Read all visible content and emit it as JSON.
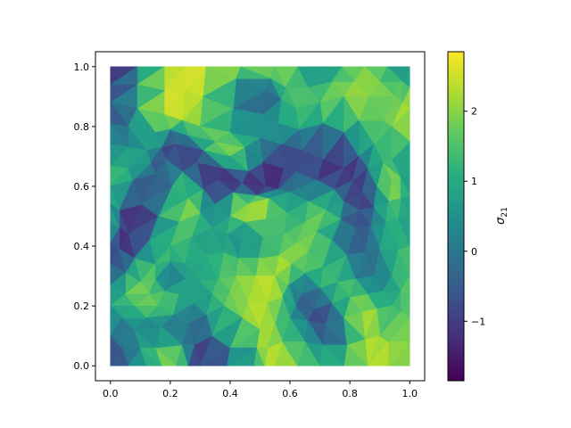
{
  "chart_data": {
    "type": "heatmap",
    "title": "",
    "xlabel": "",
    "ylabel": "",
    "xlim": [
      -0.05,
      1.05
    ],
    "ylim": [
      -0.05,
      1.05
    ],
    "x_ticks": [
      0.0,
      0.2,
      0.4,
      0.6,
      0.8,
      1.0
    ],
    "y_ticks": [
      0.0,
      0.2,
      0.4,
      0.6,
      0.8,
      1.0
    ],
    "x_tick_labels": [
      "0.0",
      "0.2",
      "0.4",
      "0.6",
      "0.8",
      "1.0"
    ],
    "y_tick_labels": [
      "0.0",
      "0.2",
      "0.4",
      "0.6",
      "0.8",
      "1.0"
    ],
    "grid": false,
    "colormap": "viridis",
    "colorbar": {
      "label": "σ21",
      "label_main": "σ",
      "label_sub": "21",
      "range": [
        -1.85,
        2.85
      ],
      "ticks": [
        -1,
        0,
        1,
        2
      ],
      "tick_labels": [
        "−1",
        "0",
        "1",
        "2"
      ]
    },
    "description_of_field": "Gouraud-shaded triangulation on unit square",
    "nodes": [
      [
        0.0,
        1.0,
        -1.8
      ],
      [
        0.18,
        1.0,
        2.3
      ],
      [
        0.32,
        1.0,
        2.6
      ],
      [
        0.55,
        1.0,
        2.2
      ],
      [
        0.7,
        1.0,
        0.3
      ],
      [
        0.85,
        1.0,
        2.0
      ],
      [
        1.0,
        1.0,
        0.2
      ],
      [
        0.0,
        0.88,
        -1.0
      ],
      [
        0.18,
        0.84,
        2.6
      ],
      [
        0.3,
        0.8,
        1.9
      ],
      [
        0.52,
        0.92,
        -0.8
      ],
      [
        0.62,
        0.86,
        1.6
      ],
      [
        0.78,
        0.9,
        2.2
      ],
      [
        0.95,
        0.9,
        1.8
      ],
      [
        1.0,
        0.86,
        2.6
      ],
      [
        0.0,
        0.74,
        0.4
      ],
      [
        0.12,
        0.72,
        0.8
      ],
      [
        0.22,
        0.74,
        -1.3
      ],
      [
        0.4,
        0.7,
        2.2
      ],
      [
        0.5,
        0.76,
        0.5
      ],
      [
        0.64,
        0.72,
        -0.8
      ],
      [
        0.78,
        0.66,
        -1.6
      ],
      [
        0.88,
        0.74,
        1.2
      ],
      [
        1.0,
        0.64,
        0.5
      ],
      [
        0.0,
        0.6,
        1.6
      ],
      [
        0.15,
        0.64,
        -0.6
      ],
      [
        0.26,
        0.56,
        2.3
      ],
      [
        0.36,
        0.62,
        -1.7
      ],
      [
        0.46,
        0.54,
        2.8
      ],
      [
        0.52,
        0.6,
        -1.8
      ],
      [
        0.6,
        0.58,
        0.4
      ],
      [
        0.72,
        0.52,
        1.8
      ],
      [
        0.84,
        0.58,
        -1.4
      ],
      [
        0.94,
        0.62,
        2.4
      ],
      [
        0.0,
        0.48,
        1.2
      ],
      [
        0.06,
        0.44,
        -1.9
      ],
      [
        0.2,
        0.4,
        1.5
      ],
      [
        0.34,
        0.46,
        0.7
      ],
      [
        0.44,
        0.42,
        0.2
      ],
      [
        0.58,
        0.44,
        1.4
      ],
      [
        0.66,
        0.38,
        2.0
      ],
      [
        0.82,
        0.46,
        -0.9
      ],
      [
        0.92,
        0.48,
        1.1
      ],
      [
        1.0,
        0.5,
        0.6
      ],
      [
        0.0,
        0.34,
        -0.9
      ],
      [
        0.1,
        0.28,
        2.1
      ],
      [
        0.2,
        0.3,
        -0.2
      ],
      [
        0.3,
        0.28,
        0.9
      ],
      [
        0.42,
        0.3,
        1.9
      ],
      [
        0.55,
        0.3,
        2.5
      ],
      [
        0.64,
        0.24,
        -0.5
      ],
      [
        0.76,
        0.28,
        1.6
      ],
      [
        0.88,
        0.3,
        -0.2
      ],
      [
        1.0,
        0.3,
        1.7
      ],
      [
        0.0,
        0.2,
        0.9
      ],
      [
        0.08,
        0.12,
        0.2
      ],
      [
        0.16,
        0.2,
        1.9
      ],
      [
        0.26,
        0.14,
        -0.3
      ],
      [
        0.38,
        0.2,
        1.6
      ],
      [
        0.5,
        0.12,
        2.4
      ],
      [
        0.6,
        0.16,
        0.8
      ],
      [
        0.72,
        0.14,
        -1.2
      ],
      [
        0.84,
        0.18,
        2.4
      ],
      [
        0.94,
        0.2,
        1.1
      ],
      [
        1.0,
        0.16,
        1.7
      ],
      [
        0.0,
        0.0,
        -1.1
      ],
      [
        0.12,
        0.0,
        1.0
      ],
      [
        0.22,
        0.0,
        2.5
      ],
      [
        0.3,
        0.0,
        -1.7
      ],
      [
        0.48,
        0.0,
        0.9
      ],
      [
        0.55,
        0.0,
        2.7
      ],
      [
        0.7,
        0.0,
        1.2
      ],
      [
        0.86,
        0.0,
        2.6
      ],
      [
        1.0,
        0.0,
        1.9
      ]
    ]
  }
}
